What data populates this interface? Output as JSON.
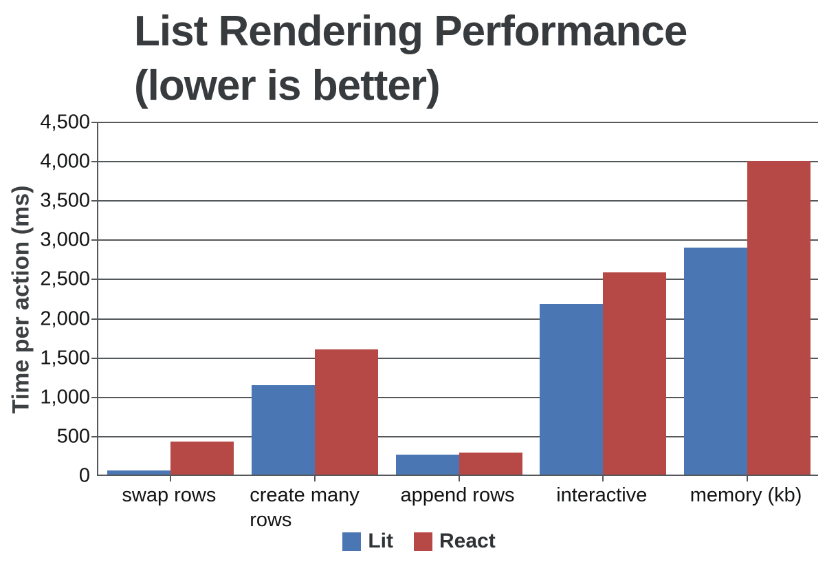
{
  "title": {
    "line1": "List Rendering Performance",
    "line2": "(lower is better)"
  },
  "chart_data": {
    "type": "bar",
    "title": "List Rendering Performance (lower is better)",
    "categories": [
      "swap rows",
      "create many rows",
      "append rows",
      "interactive",
      "memory (kb)"
    ],
    "series": [
      {
        "name": "Lit",
        "color": "#4a77b4",
        "values": [
          50,
          1140,
          250,
          2170,
          2890
        ]
      },
      {
        "name": "React",
        "color": "#b64845",
        "values": [
          420,
          1590,
          280,
          2570,
          3990
        ]
      }
    ],
    "xlabel": "",
    "ylabel": "Time per action (ms)",
    "ylim": [
      0,
      4500
    ],
    "ytick_interval": 500,
    "ytick_labels": [
      "0",
      "500",
      "1,000",
      "1,500",
      "2,000",
      "2,500",
      "3,000",
      "3,500",
      "4,000",
      "4,500"
    ],
    "grid": true,
    "gridline_color": "#55585a",
    "legend_position": "bottom"
  }
}
